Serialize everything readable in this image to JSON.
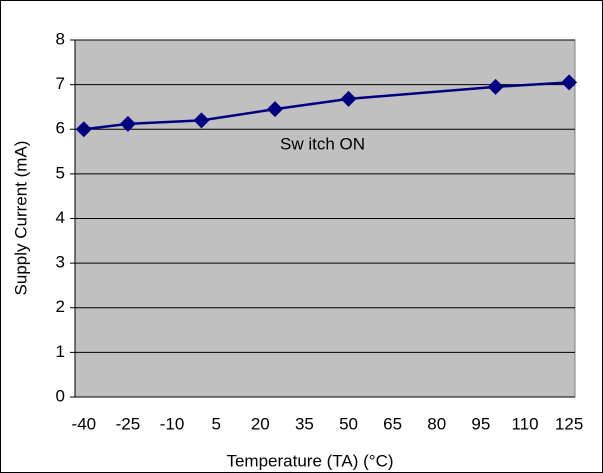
{
  "chart_data": {
    "type": "line",
    "x_label": "Temperature (TA)   (°C)",
    "y_label": "Supply Current (mA)",
    "annotation": "Sw itch ON",
    "x": [
      -40,
      -25,
      0,
      25,
      50,
      100,
      125
    ],
    "series": [
      {
        "name": "Switch ON",
        "color": "#000080",
        "values": [
          6.0,
          6.12,
          6.2,
          6.45,
          6.68,
          6.95,
          7.05
        ]
      }
    ],
    "xlim": [
      -43,
      127
    ],
    "xticks": [
      -40,
      -25,
      -10,
      5,
      20,
      35,
      50,
      65,
      80,
      95,
      110,
      125
    ],
    "ylim": [
      0,
      8
    ],
    "yticks": [
      0,
      1,
      2,
      3,
      4,
      5,
      6,
      7,
      8
    ],
    "grid": true,
    "plot_background": "#c0c0c0"
  }
}
